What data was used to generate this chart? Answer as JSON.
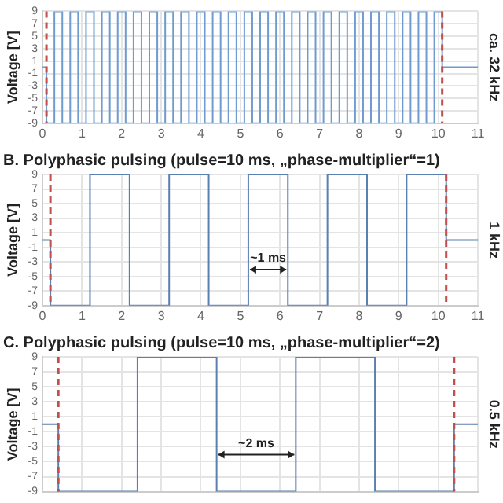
{
  "chart_data": [
    {
      "type": "step",
      "ylabel": "Voltage [V]",
      "y2label": "ca. 32 kHz",
      "x": [
        0,
        0.1,
        0.3,
        0.5,
        0.7,
        0.9,
        1.1,
        1.3,
        1.5,
        1.7,
        1.9,
        2.1,
        2.3,
        2.5,
        2.7,
        2.9,
        3.1,
        3.3,
        3.5,
        3.7,
        3.9,
        4.1,
        4.3,
        4.5,
        4.7,
        4.9,
        5.1,
        5.3,
        5.5,
        5.7,
        5.9,
        6.1,
        6.3,
        6.5,
        6.7,
        6.9,
        7.1,
        7.3,
        7.5,
        7.7,
        7.9,
        8.1,
        8.3,
        8.5,
        8.7,
        8.9,
        9.1,
        9.3,
        9.5,
        9.7,
        9.9,
        10.1,
        11
      ],
      "series": [
        {
          "color": "#6f9bd0",
          "values": [
            0,
            -9,
            9,
            -9,
            9,
            -9,
            9,
            -9,
            9,
            -9,
            9,
            -9,
            9,
            -9,
            9,
            -9,
            9,
            -9,
            9,
            -9,
            9,
            -9,
            9,
            -9,
            9,
            -9,
            9,
            -9,
            9,
            -9,
            9,
            -9,
            9,
            -9,
            9,
            -9,
            9,
            -9,
            9,
            -9,
            9,
            -9,
            9,
            -9,
            9,
            -9,
            9,
            -9,
            9,
            -9,
            9,
            0,
            0
          ]
        }
      ],
      "xlim": [
        0,
        11
      ],
      "xticks": [
        0,
        1,
        2,
        3,
        4,
        5,
        6,
        7,
        8,
        9,
        10,
        11
      ],
      "ylim": [
        -9,
        9
      ],
      "yticks": [
        -9,
        -7,
        -5,
        -3,
        -1,
        1,
        3,
        5,
        7,
        9
      ],
      "ref_lines": [
        {
          "axis": "x",
          "value": 0.1,
          "color": "#c0504d",
          "line_style": "dashed"
        },
        {
          "axis": "x",
          "value": 10.1,
          "color": "#c0504d",
          "line_style": "dashed"
        }
      ],
      "grid": true,
      "legend": false,
      "marker": "none"
    },
    {
      "type": "step",
      "title": "B. Polyphasic pulsing (pulse=10 ms, „phase-multiplier“=1)",
      "ylabel": "Voltage [V]",
      "y2label": "1 kHz",
      "x": [
        0,
        0.2,
        1.2,
        2.2,
        3.2,
        4.2,
        5.2,
        6.2,
        7.2,
        8.2,
        9.2,
        10.2,
        11
      ],
      "series": [
        {
          "color": "#5b7fb0",
          "values": [
            0,
            -9,
            9,
            -9,
            9,
            -9,
            9,
            -9,
            9,
            -9,
            9,
            0,
            0
          ]
        }
      ],
      "xlim": [
        0,
        11
      ],
      "xticks": [
        0,
        1,
        2,
        3,
        4,
        5,
        6,
        7,
        8,
        9,
        10,
        11
      ],
      "ylim": [
        -9,
        9
      ],
      "yticks": [
        -9,
        -7,
        -5,
        -3,
        -1,
        1,
        3,
        5,
        7,
        9
      ],
      "ref_lines": [
        {
          "axis": "x",
          "value": 0.2,
          "color": "#c0504d",
          "line_style": "dashed"
        },
        {
          "axis": "x",
          "value": 10.2,
          "color": "#c0504d",
          "line_style": "dashed"
        }
      ],
      "annotations": [
        "~1 ms"
      ],
      "grid": true,
      "legend": false,
      "marker": "none"
    },
    {
      "type": "step",
      "title": "C. Polyphasic pulsing (pulse=10 ms, „phase-multiplier“=2)",
      "ylabel": "Voltage [V]",
      "y2label": "0.5 kHz",
      "x": [
        0,
        0.4,
        2.4,
        4.4,
        6.4,
        8.4,
        10.4,
        11
      ],
      "series": [
        {
          "color": "#5b7fb0",
          "values": [
            0,
            -9,
            9,
            -9,
            9,
            -9,
            0,
            0
          ]
        }
      ],
      "xlim": [
        0,
        11
      ],
      "xticks": [
        0,
        1,
        2,
        3,
        4,
        5,
        6,
        7,
        8,
        9,
        10,
        11
      ],
      "ylim": [
        -9,
        9
      ],
      "yticks": [
        -9,
        -7,
        -5,
        -3,
        -1,
        1,
        3,
        5,
        7,
        9
      ],
      "ref_lines": [
        {
          "axis": "x",
          "value": 0.4,
          "color": "#c0504d",
          "line_style": "dashed"
        },
        {
          "axis": "x",
          "value": 10.4,
          "color": "#c0504d",
          "line_style": "dashed"
        }
      ],
      "annotations": [
        "~2 ms"
      ],
      "grid": true,
      "legend": false,
      "marker": "none",
      "tick_labels": "y"
    }
  ]
}
